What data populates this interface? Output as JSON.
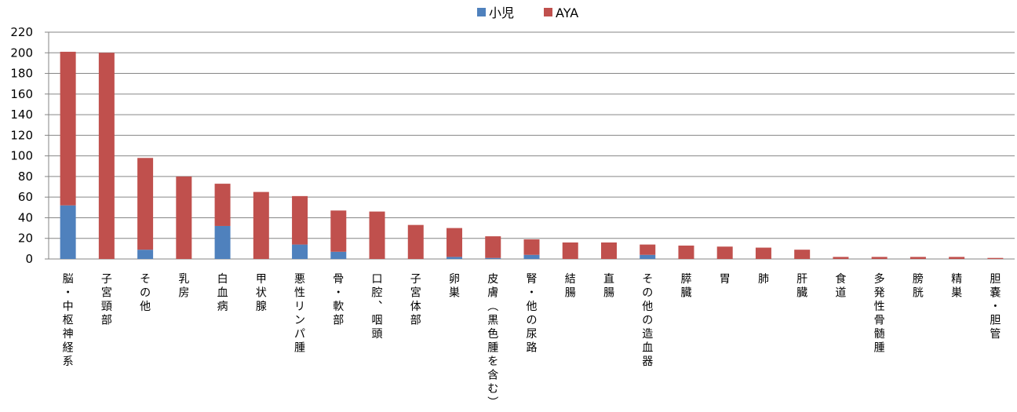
{
  "chart_data": {
    "type": "bar",
    "stacked": true,
    "title": "",
    "xlabel": "",
    "ylabel": "",
    "ylim": [
      0,
      220
    ],
    "y_ticks": [
      0,
      20,
      40,
      60,
      80,
      100,
      120,
      140,
      160,
      180,
      200,
      220
    ],
    "grid": true,
    "legend": "top-center",
    "categories": [
      "脳・中枢神経系",
      "子宮頸部",
      "その他",
      "乳房",
      "白血病",
      "甲状腺",
      "悪性リンパ腫",
      "骨・軟部",
      "口腔、咽頭",
      "子宮体部",
      "卵巣",
      "皮膚(黒色腫を含む)",
      "腎・他の尿路",
      "結腸",
      "直腸",
      "その他の造血器",
      "膵臓",
      "胃",
      "肺",
      "肝臓",
      "食道",
      "多発性骨髄腫",
      "膀胱",
      "精巣",
      "胆嚢・胆管"
    ],
    "series": [
      {
        "name": "小児",
        "color": "#4f81bd",
        "values": [
          52,
          0,
          9,
          0,
          32,
          0,
          14,
          7,
          0,
          0,
          2,
          1,
          4,
          0,
          0,
          4,
          0,
          0,
          0,
          0,
          0,
          0,
          0,
          0,
          0
        ]
      },
      {
        "name": "AYA",
        "color": "#c0504d",
        "values": [
          149,
          200,
          89,
          80,
          41,
          65,
          47,
          40,
          46,
          33,
          28,
          21,
          15,
          16,
          16,
          10,
          13,
          12,
          11,
          9,
          2,
          2,
          2,
          2,
          1
        ]
      }
    ]
  }
}
